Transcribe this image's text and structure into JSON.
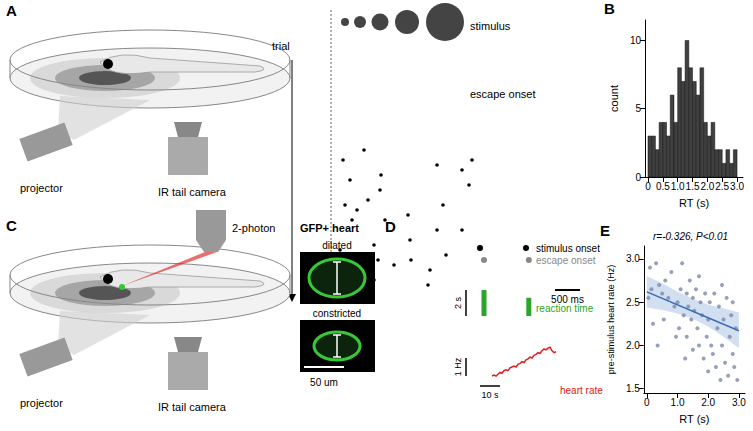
{
  "panel_labels": [
    "A",
    "B",
    "C",
    "D",
    "E"
  ],
  "panel_a": {
    "setup_labels": [
      "projector",
      "IR tail camera"
    ],
    "trial_label": "trial",
    "stimulus_label": "stimulus",
    "escape_label": "escape onset",
    "scale_bar": {
      "value": 500,
      "label": "500 ms"
    },
    "escape_onsets": {
      "trial": [
        1,
        3,
        3,
        4,
        5,
        6,
        7,
        9,
        8,
        11,
        12,
        12,
        13,
        14,
        15,
        15,
        17,
        17,
        19,
        20,
        21,
        22,
        23,
        23,
        24,
        25,
        25,
        27,
        29,
        28
      ],
      "ms": [
        660,
        240,
        2820,
        2120,
        2620,
        1000,
        380,
        980,
        2760,
        740,
        280,
        2240,
        520,
        1540,
        420,
        1080,
        2120,
        2620,
        1580,
        860,
        180,
        2300,
        940,
        1600,
        1260,
        380,
        1980,
        860,
        640,
        1940
      ]
    }
  },
  "chart_data": [
    {
      "type": "histogram",
      "xlabel": "RT (s)",
      "ylabel": "count",
      "bins": [
        0,
        0.125,
        0.25,
        0.375,
        0.5,
        0.625,
        0.75,
        0.875,
        1,
        1.125,
        1.25,
        1.375,
        1.5,
        1.625,
        1.75,
        1.875,
        2,
        2.125,
        2.25,
        2.375,
        2.5,
        2.625,
        2.75,
        2.875,
        3
      ],
      "counts": [
        3,
        3,
        2,
        4,
        4,
        3,
        6,
        4,
        8,
        7,
        10,
        8,
        7,
        6,
        8,
        4,
        3,
        4,
        2,
        2,
        1,
        2,
        1,
        2
      ],
      "color": "#404040",
      "xlim": [
        -0.1,
        3.2
      ],
      "xticks": [
        0,
        0.5,
        {
          "value": 1,
          "label": "1.0"
        },
        1.5,
        {
          "value": 2,
          "label": "2.0"
        },
        2.5,
        {
          "value": 3,
          "label": "3.0"
        }
      ],
      "ylim": [
        0,
        11.5
      ],
      "yticks": [
        0,
        5,
        10
      ],
      "grid": false
    },
    {
      "type": "scatter",
      "annotation": "r=-0.326, P<0.01",
      "xlabel": "RT (s)",
      "ylabel": "pre-stimulus heart rate (Hz)",
      "x": [
        0.1,
        0.3,
        0.4,
        0.5,
        0.2,
        0.35,
        0.6,
        0.7,
        0.8,
        0.9,
        1.0,
        1.05,
        1.1,
        1.15,
        1.2,
        1.3,
        1.3,
        1.35,
        1.4,
        1.45,
        1.5,
        1.5,
        1.55,
        1.6,
        1.65,
        1.7,
        1.75,
        1.8,
        1.85,
        1.9,
        1.95,
        2.0,
        2.0,
        2.05,
        2.1,
        2.15,
        2.2,
        2.25,
        2.3,
        2.35,
        2.4,
        2.45,
        2.5,
        2.55,
        2.6,
        2.65,
        2.7,
        2.75,
        2.8,
        2.85,
        2.9,
        2.95,
        0.15,
        0.55,
        1.25,
        0.05,
        2.8,
        1.7,
        0.95,
        2.45
      ],
      "y": [
        2.9,
        2.95,
        2.7,
        2.6,
        2.25,
        2.0,
        2.75,
        2.55,
        2.85,
        2.45,
        2.5,
        2.2,
        2.65,
        2.95,
        2.35,
        2.6,
        2.1,
        2.45,
        2.75,
        2.3,
        2.55,
        1.95,
        2.4,
        2.65,
        2.2,
        2.0,
        2.5,
        2.35,
        1.85,
        2.6,
        2.1,
        2.3,
        1.7,
        2.5,
        2.0,
        1.9,
        2.6,
        1.75,
        2.2,
        2.45,
        1.6,
        2.0,
        2.3,
        1.8,
        2.55,
        1.65,
        2.1,
        2.35,
        1.9,
        1.75,
        2.2,
        1.6,
        2.65,
        2.3,
        1.85,
        2.55,
        2.5,
        2.8,
        2.1,
        2.7
      ],
      "color": "#7a8aa8",
      "fit": {
        "x": [
          0,
          3
        ],
        "y": [
          2.62,
          2.17
        ],
        "color": "#3b6bb0"
      },
      "ci": {
        "x": [
          0,
          0.5,
          1,
          1.5,
          2,
          2.5,
          3
        ],
        "lower": [
          2.44,
          2.41,
          2.37,
          2.31,
          2.22,
          2.1,
          1.97
        ],
        "upper": [
          2.8,
          2.72,
          2.62,
          2.54,
          2.47,
          2.43,
          2.38
        ],
        "color": "#c6d7ee"
      },
      "xlim": [
        -0.1,
        3.2
      ],
      "xticks": [
        0,
        {
          "value": 1,
          "label": "1.0"
        },
        {
          "value": 2,
          "label": "2.0"
        },
        {
          "value": 3,
          "label": "3.0"
        }
      ],
      "ylim": [
        1.45,
        3.15
      ],
      "yticks": [
        1.5,
        {
          "value": 2,
          "label": "2.0"
        },
        2.5,
        {
          "value": 3,
          "label": "3.0"
        }
      ],
      "grid": false
    }
  ],
  "panel_c": {
    "setup_labels": [
      "projector",
      "IR tail camera"
    ],
    "objective_label": "2-photon",
    "image_title": "GFP+ heart",
    "image_labels": [
      "dilated",
      "constricted"
    ],
    "scale_bar": {
      "value": 50,
      "label": "50 um"
    }
  },
  "panel_d": {
    "stimulus_label": "stimulus onset",
    "escape_label": "escape onset",
    "reaction_time_label": "reaction time",
    "heart_rate_label": "heart rate",
    "stimulus_onsets_s": [
      0,
      23
    ],
    "reaction_times_s": [
      2,
      1.4
    ],
    "scale_bars": {
      "reaction_time": {
        "value": 2,
        "label": "2 s"
      },
      "heart_rate": {
        "value": 1,
        "label": "1 Hz"
      },
      "time": {
        "value": 10,
        "label": "10 s"
      }
    },
    "heart_rate": {
      "t_s": [
        6,
        7,
        8,
        9,
        10,
        11,
        12,
        13,
        14,
        15,
        16,
        17,
        18,
        19,
        20,
        21,
        22,
        23,
        24,
        25,
        26,
        27,
        28,
        29,
        30,
        31,
        32,
        33,
        34,
        35,
        36,
        37,
        38
      ],
      "hz": [
        2.0,
        2.05,
        2.0,
        2.1,
        2.2,
        2.15,
        2.3,
        2.35,
        2.3,
        2.45,
        2.5,
        2.55,
        2.5,
        2.65,
        2.7,
        2.8,
        2.75,
        2.9,
        2.95,
        3.05,
        3.0,
        3.15,
        3.2,
        3.3,
        3.25,
        3.4,
        3.5,
        3.45,
        3.55,
        3.6,
        3.4,
        3.3,
        3.35
      ]
    }
  }
}
